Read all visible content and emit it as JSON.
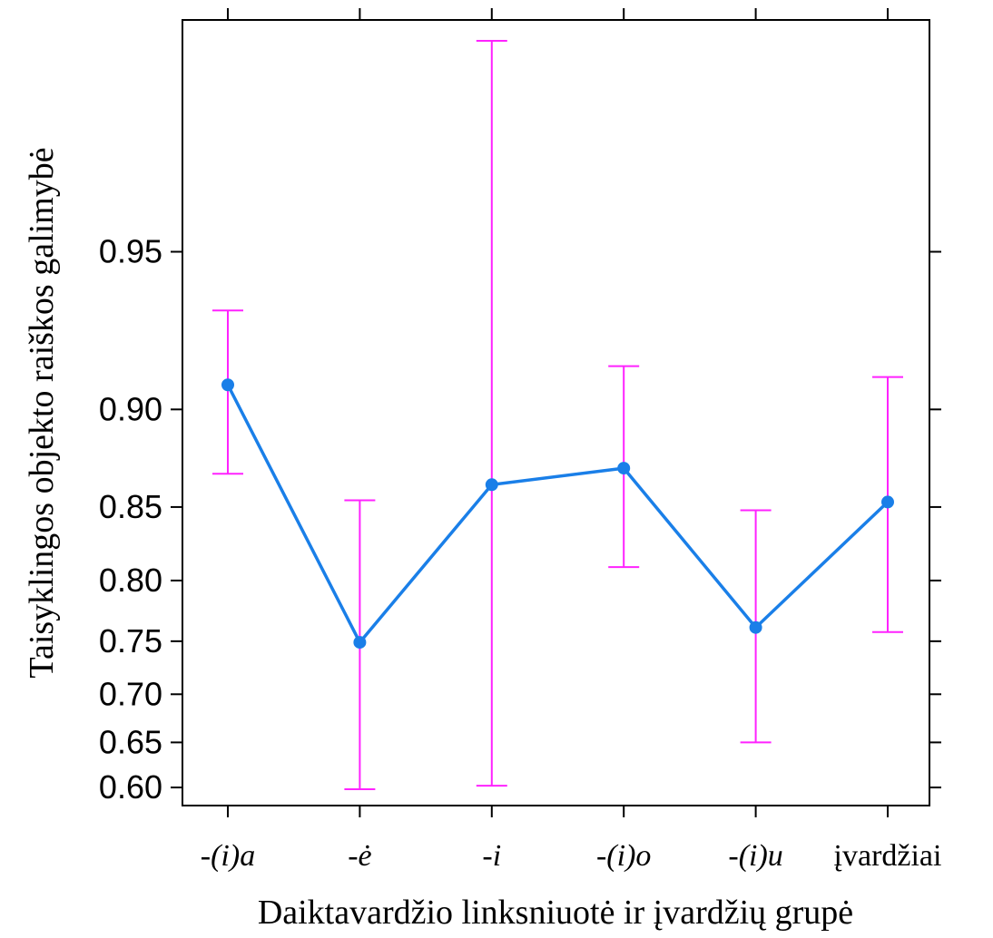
{
  "chart_data": {
    "type": "line",
    "xlabel": "Daiktavardžio linksniuotė ir įvardžių grupė",
    "ylabel": "Taisyklingos objekto raiškos galimybė",
    "categories": [
      "-(i)a",
      "-ė",
      "-i",
      "-(i)o",
      "-(i)u",
      "įvardžiai"
    ],
    "category_styles": [
      "italic",
      "italic",
      "italic",
      "italic",
      "italic",
      "normal"
    ],
    "y_ticks": [
      "0.60",
      "0.65",
      "0.70",
      "0.75",
      "0.80",
      "0.85",
      "0.90",
      "0.95"
    ],
    "y_scale": "logit",
    "y_range": [
      0.598,
      0.981
    ],
    "series": [
      {
        "values": [
          0.91,
          0.749,
          0.863,
          0.872,
          0.762,
          0.853
        ],
        "lower": [
          0.869,
          0.598,
          0.602,
          0.81,
          0.65,
          0.758
        ],
        "upper": [
          0.935,
          0.854,
          0.981,
          0.917,
          0.848,
          0.913
        ],
        "color": "#1a7fe8",
        "error_bar_color": "#ff22ff"
      }
    ],
    "grid": false,
    "legend": "none"
  }
}
